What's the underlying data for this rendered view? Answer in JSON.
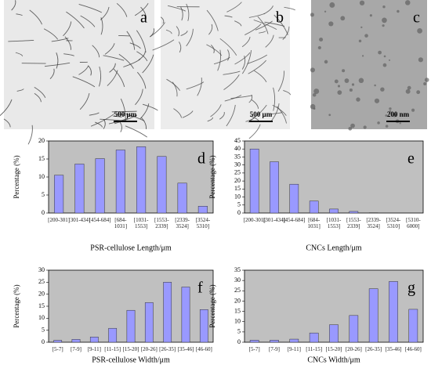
{
  "images": [
    {
      "label": "a",
      "scale_bar": "500 µm"
    },
    {
      "label": "b",
      "scale_bar": "500 µm"
    },
    {
      "label": "c",
      "scale_bar": "200 nm"
    }
  ],
  "chart_data": [
    {
      "type": "bar",
      "label": "d",
      "ylabel": "Percentage (%)",
      "xlabel": "PSR-cellulose Length/μm",
      "categories": [
        "[200-301]",
        "[301-434]",
        "[454-684]",
        "[684-1031]",
        "[1031-1553]",
        "[1553-2339]",
        "[2339-3524]",
        "[3524-5310]"
      ],
      "values": [
        10.5,
        13.6,
        15.1,
        17.5,
        18.4,
        15.7,
        8.3,
        1.9
      ],
      "color": "#9999ff",
      "ylim": [
        0,
        20
      ],
      "yticks": [
        0,
        5,
        10,
        15,
        20
      ]
    },
    {
      "type": "bar",
      "label": "e",
      "ylabel": "Percentage (%)",
      "xlabel": "CNCs Length/μm",
      "categories": [
        "[200-301]",
        "[301-434]",
        "[454-684]",
        "[684-1031]",
        "[1031-1553]",
        "[1553-2339]",
        "[2339-3524]",
        "[3524-5310]",
        "[5310-6000]"
      ],
      "values": [
        40,
        32,
        18,
        7.5,
        2.5,
        1,
        0.2,
        0,
        0
      ],
      "color": "#9999ff",
      "ylim": [
        0,
        45
      ],
      "yticks": [
        0,
        5,
        10,
        15,
        20,
        25,
        30,
        35,
        40,
        45
      ]
    },
    {
      "type": "bar",
      "label": "f",
      "ylabel": "Percentage (%)",
      "xlabel": "PSR-cellulose Width/μm",
      "categories": [
        "[5-7]",
        "[7-9]",
        "[9-11]",
        "[11-15]",
        "[15-20]",
        "[20-26]",
        "[26-35]",
        "[35-46]",
        "[46-60]"
      ],
      "values": [
        0.8,
        1.2,
        2.2,
        5.8,
        13.3,
        16.5,
        25,
        23,
        13.6
      ],
      "color": "#9999ff",
      "ylim": [
        0,
        30
      ],
      "yticks": [
        0,
        5,
        10,
        15,
        20,
        25,
        30
      ]
    },
    {
      "type": "bar",
      "label": "g",
      "ylabel": "Percentage (%)",
      "xlabel": "CNCs Width/μm",
      "categories": [
        "[5-7]",
        "[7-9]",
        "[9-11]",
        "[11-15]",
        "[15-20]",
        "[20-26]",
        "[26-35]",
        "[35-46]",
        "[46-60]"
      ],
      "values": [
        1,
        1,
        1.5,
        4.5,
        8.5,
        13,
        26,
        29.5,
        16
      ],
      "color": "#9999ff",
      "ylim": [
        0,
        35
      ],
      "yticks": [
        0,
        5,
        10,
        15,
        20,
        25,
        30,
        35
      ]
    }
  ]
}
